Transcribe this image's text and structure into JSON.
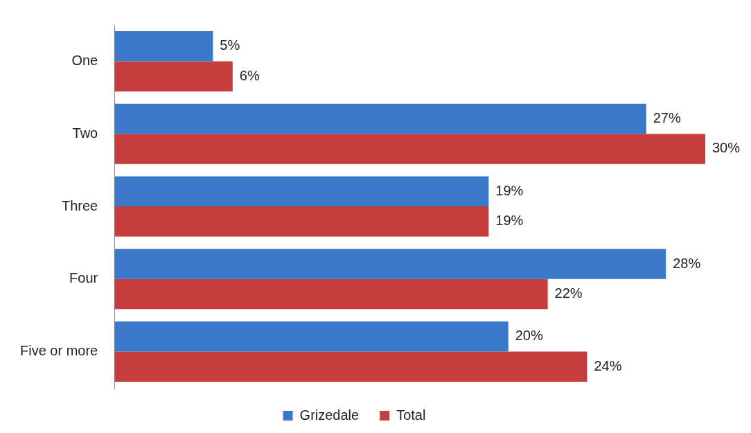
{
  "chart_data": {
    "type": "bar",
    "orientation": "horizontal",
    "categories": [
      "One",
      "Two",
      "Three",
      "Four",
      "Five or more"
    ],
    "series": [
      {
        "name": "Grizedale",
        "color": "#3c78c8",
        "values": [
          5,
          27,
          19,
          28,
          20
        ],
        "value_labels": [
          "5%",
          "27%",
          "19%",
          "28%",
          "20%"
        ]
      },
      {
        "name": "Total",
        "color": "#c73c3c",
        "values": [
          6,
          30,
          19,
          22,
          24
        ],
        "value_labels": [
          "6%",
          "30%",
          "19%",
          "22%",
          "24%"
        ]
      }
    ],
    "legend": "bottom"
  }
}
